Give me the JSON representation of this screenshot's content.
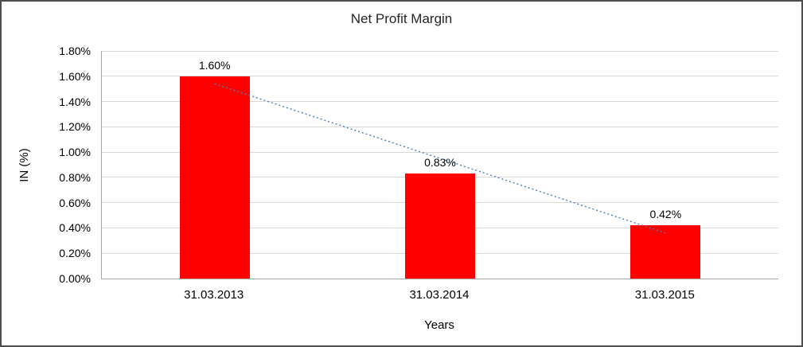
{
  "chart_data": {
    "type": "bar",
    "title": "Net Profit Margin",
    "xlabel": "Years",
    "ylabel": "IN (%)",
    "categories": [
      "31.03.2013",
      "31.03.2014",
      "31.03.2015"
    ],
    "values": [
      1.6,
      0.83,
      0.42
    ],
    "value_labels": [
      "1.60%",
      "0.83%",
      "0.42%"
    ],
    "ylim": [
      0,
      1.8
    ],
    "ytick_step": 0.2,
    "ytick_labels": [
      "0.00%",
      "0.20%",
      "0.40%",
      "0.60%",
      "0.80%",
      "1.00%",
      "1.20%",
      "1.40%",
      "1.60%",
      "1.80%"
    ],
    "grid": true,
    "legend": "none",
    "bar_color": "#ff0000",
    "gridline_color": "#d9d9d9",
    "trendline": {
      "type": "linear",
      "style": "dotted",
      "color": "#4a7ebb",
      "start_value": 1.54,
      "end_value": 0.36
    }
  }
}
